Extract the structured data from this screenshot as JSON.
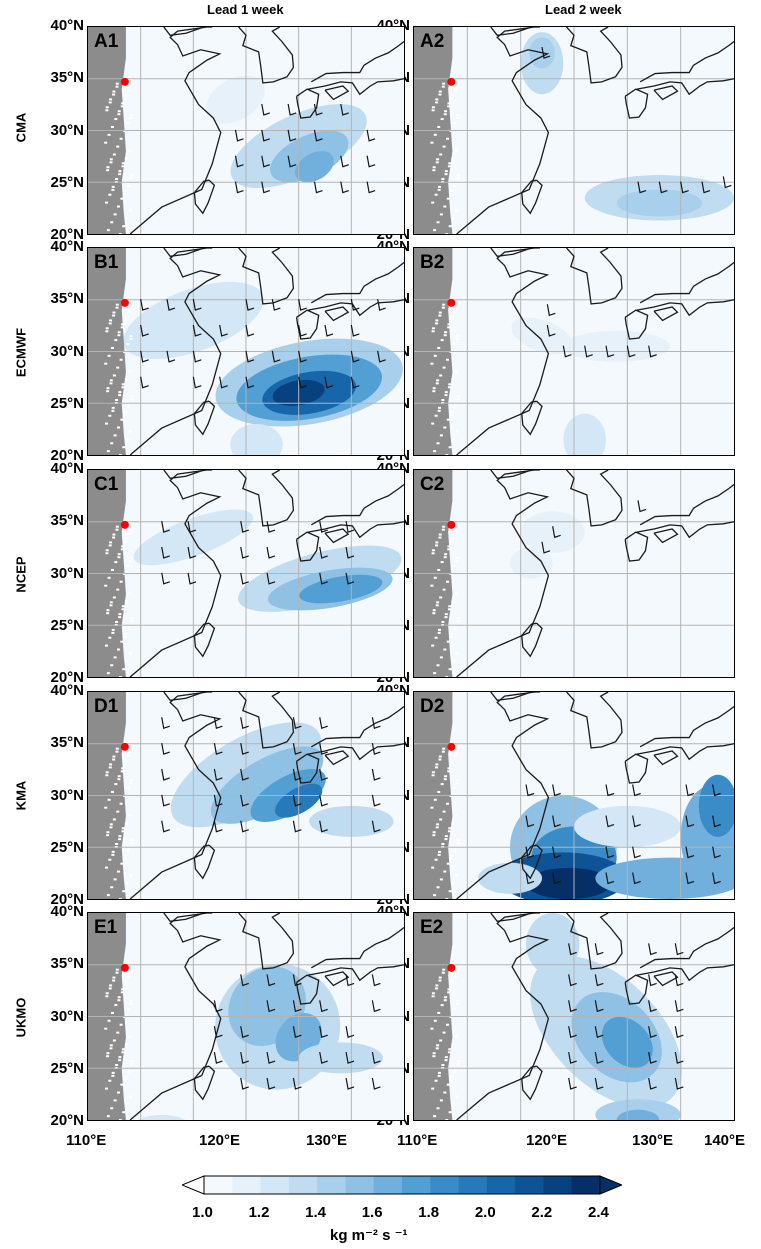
{
  "columns": [
    "Lead 1 week",
    "Lead 2 week"
  ],
  "rows": [
    {
      "model": "CMA",
      "panels": [
        "A1",
        "A2"
      ]
    },
    {
      "model": "ECMWF",
      "panels": [
        "B1",
        "B2"
      ]
    },
    {
      "model": "NCEP",
      "panels": [
        "C1",
        "C2"
      ]
    },
    {
      "model": "KMA",
      "panels": [
        "D1",
        "D2"
      ]
    },
    {
      "model": "UKMO",
      "panels": [
        "E1",
        "E2"
      ]
    }
  ],
  "lat_labels": [
    "40°N",
    "35°N",
    "30°N",
    "25°N",
    "20°N"
  ],
  "lon_labels": [
    "110°E",
    "120°E",
    "130°E",
    "140°E"
  ],
  "map_extent": {
    "lon": [
      110,
      140
    ],
    "lat": [
      20,
      40
    ]
  },
  "gridlines": {
    "lon": [
      115,
      120,
      125,
      130,
      135
    ],
    "lat": [
      25,
      30,
      35
    ]
  },
  "marker": {
    "lon": 113.5,
    "lat": 34.7,
    "color": "#ff0000"
  },
  "colorbar": {
    "ticks": [
      "1.0",
      "1.2",
      "1.4",
      "1.6",
      "1.8",
      "2.0",
      "2.2",
      "2.4"
    ],
    "levels": [
      1.0,
      1.1,
      1.2,
      1.3,
      1.4,
      1.5,
      1.6,
      1.7,
      1.8,
      1.9,
      2.0,
      2.1,
      2.2,
      2.3,
      2.4
    ],
    "colors": [
      "#f4f9fd",
      "#e6f1fa",
      "#d4e7f6",
      "#c0dcf1",
      "#a8cfeb",
      "#8ec1e4",
      "#71b0dc",
      "#519fd3",
      "#3a8cc8",
      "#2679ba",
      "#1766aa",
      "#0d5396",
      "#08417f",
      "#052f66"
    ],
    "unit": "kg m⁻² s ⁻¹",
    "extend": "both"
  },
  "colors": {
    "land_mask": "#8c8c8c",
    "coast": "#1a1a1a",
    "grid": "#b4b4b4",
    "barb": "#141414"
  }
}
